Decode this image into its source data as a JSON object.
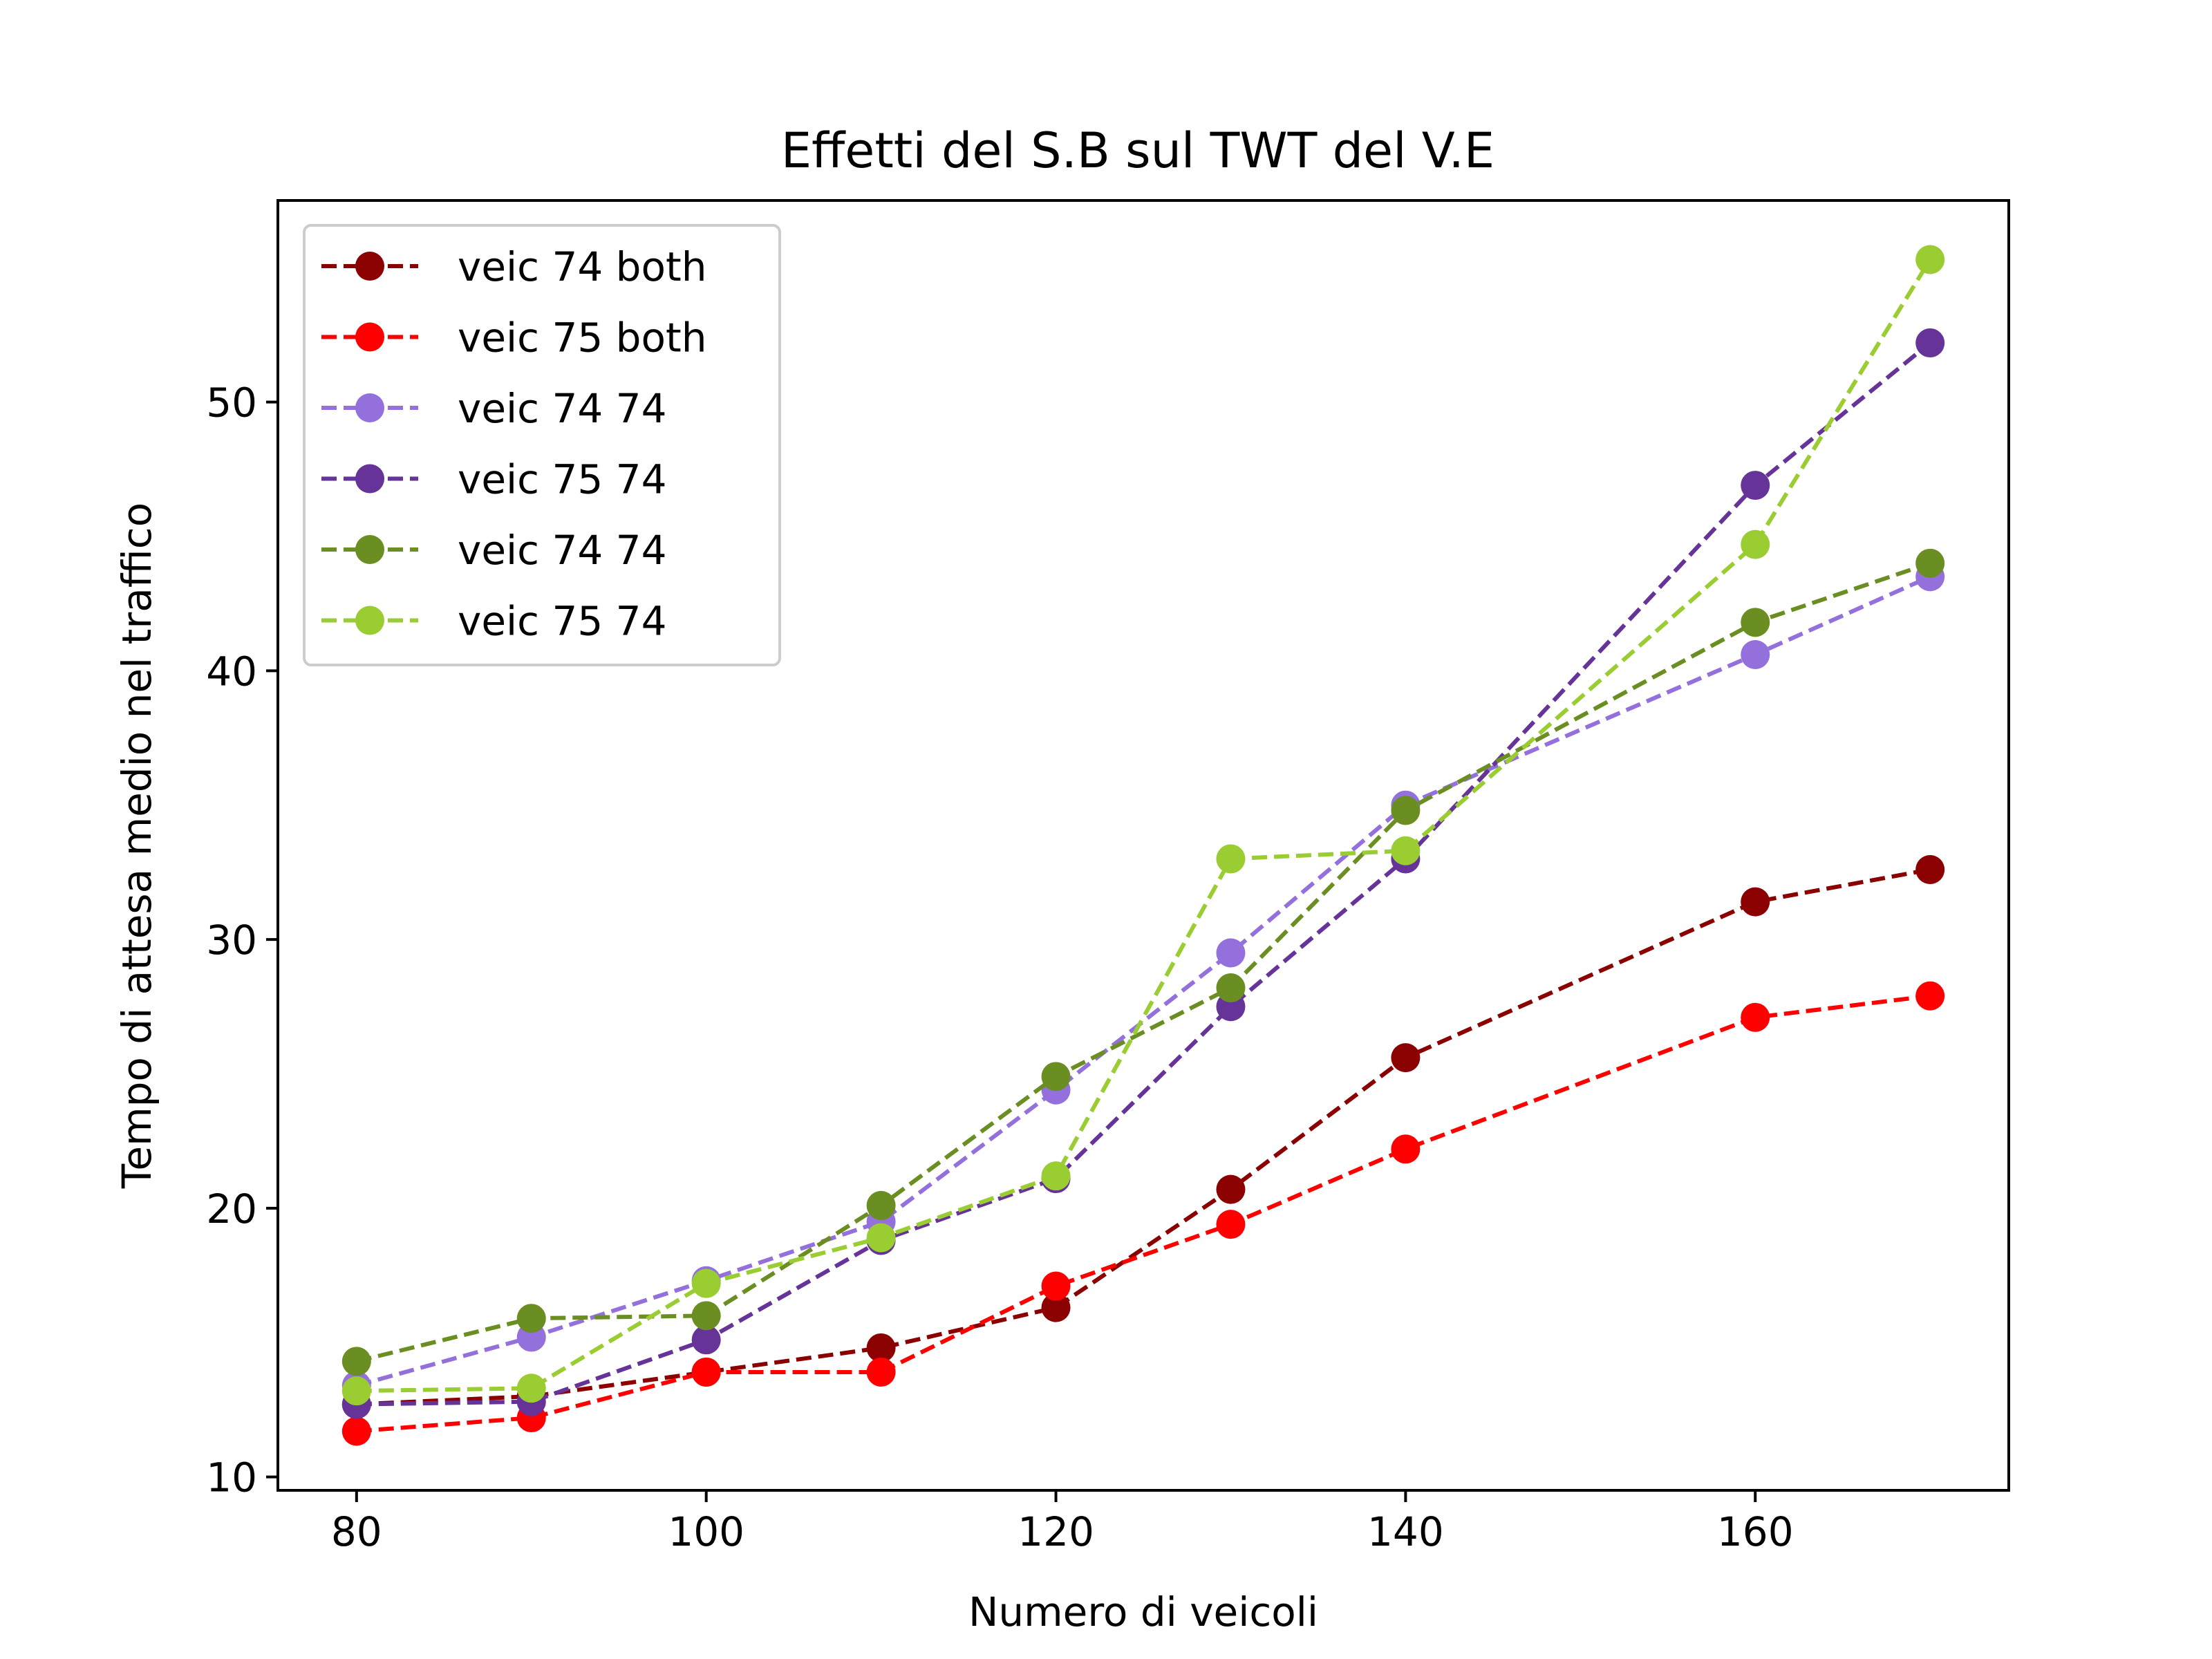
{
  "chart_data": {
    "type": "line",
    "title": "Effetti del S.B sul TWT del V.E",
    "xlabel": "Numero di veicoli",
    "ylabel": "Tempo di attesa medio nel traffico",
    "xlim": [
      75.5,
      174.5
    ],
    "ylim": [
      9.5,
      57.5
    ],
    "xticks": [
      80,
      100,
      120,
      140,
      160
    ],
    "yticks": [
      10,
      20,
      30,
      40,
      50
    ],
    "grid": false,
    "legend_position": "upper left",
    "x": [
      80,
      90,
      100,
      110,
      120,
      130,
      140,
      160,
      170
    ],
    "series": [
      {
        "name": "veic 74 both",
        "color": "#8b0000",
        "values": [
          12.7,
          13.0,
          13.9,
          14.8,
          16.3,
          20.7,
          25.6,
          31.4,
          32.6
        ]
      },
      {
        "name": "veic 75 both",
        "color": "#ff0000",
        "values": [
          11.7,
          12.2,
          13.9,
          13.9,
          17.1,
          19.4,
          22.2,
          27.1,
          27.9
        ]
      },
      {
        "name": "veic 74 74",
        "color": "#9370db",
        "values": [
          13.4,
          15.2,
          17.3,
          19.5,
          24.4,
          29.5,
          35.0,
          40.6,
          43.5
        ]
      },
      {
        "name": "veic 75 74",
        "color": "#663399",
        "values": [
          12.7,
          12.8,
          15.1,
          18.8,
          21.1,
          27.5,
          33.0,
          46.9,
          52.2
        ]
      },
      {
        "name": "veic 74 74",
        "color": "#6b8e23",
        "values": [
          14.3,
          15.9,
          16.0,
          20.1,
          24.9,
          28.2,
          34.8,
          41.8,
          44.0
        ]
      },
      {
        "name": "veic 75 74",
        "color": "#9acd32",
        "values": [
          13.2,
          13.3,
          17.2,
          18.9,
          21.2,
          33.0,
          33.3,
          44.7,
          55.3
        ]
      }
    ]
  }
}
